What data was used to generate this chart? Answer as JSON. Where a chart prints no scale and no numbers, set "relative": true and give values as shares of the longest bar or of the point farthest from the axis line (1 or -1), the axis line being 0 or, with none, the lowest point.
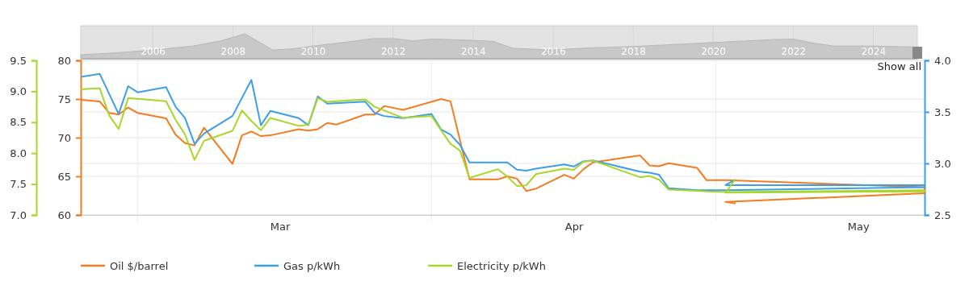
{
  "chart_data": [
    {
      "type": "line",
      "xlim": [
        "--02-23",
        "--05-23"
      ],
      "xticks": [
        {
          "value": "--03-01",
          "label": null
        },
        {
          "value": "--03-16",
          "label": "Mar"
        },
        {
          "value": "--04-01",
          "label": null
        },
        {
          "value": "--04-16",
          "label": "Apr"
        },
        {
          "value": "--05-01",
          "label": null
        },
        {
          "value": "--05-16",
          "label": "May"
        }
      ],
      "ylim": [
        60,
        80
      ],
      "yticks": [
        60,
        65,
        70,
        75,
        80
      ],
      "y2lim": [
        2.5,
        4.0
      ],
      "y2ticks": [
        {
          "value": 2.5,
          "label": "2.5"
        },
        {
          "value": 3,
          "label": "3.0"
        },
        {
          "value": 3.5,
          "label": "3.5"
        },
        {
          "value": 4,
          "label": "4.0"
        }
      ],
      "y3lim": [
        7.0,
        9.5
      ],
      "y3ticks": [
        {
          "value": 7,
          "label": "7.0"
        },
        {
          "value": 7.5,
          "label": "7.5"
        },
        {
          "value": 8,
          "label": "8.0"
        },
        {
          "value": 8.5,
          "label": "8.5"
        },
        {
          "value": 9,
          "label": "9.0"
        },
        {
          "value": 9.5,
          "label": "9.5"
        }
      ],
      "grid": true,
      "legend": "bottom",
      "annotations": [
        "Show all"
      ],
      "series": [
        {
          "name": "Oil $/barrel",
          "color": "#f47b20",
          "x": [
            "--02-23",
            "--02-25",
            "--02-26",
            "--02-27",
            "--02-28",
            "--03-01",
            "--03-04",
            "--03-05",
            "--03-06",
            "--03-07",
            "--03-08",
            "--03-11",
            "--03-12",
            "--03-13",
            "--03-14",
            "--03-15",
            "--03-18",
            "--03-19",
            "--03-20",
            "--03-21",
            "--03-22",
            "--03-25",
            "--03-26",
            "--03-27",
            "--03-29",
            "--04-02",
            "--04-03",
            "--04-05",
            "--04-08",
            "--04-09",
            "--04-10",
            "--04-11",
            "--04-12",
            "--04-15",
            "--04-16",
            "--04-17",
            "--04-18",
            "--04-23",
            "--04-24",
            "--04-25",
            "--04-26",
            "--04-29",
            "--04-30",
            "--05-02",
            "--05-23",
            "--05-23",
            "--05-02",
            "--05-03"
          ],
          "values": [
            74.9,
            74.7,
            73.2,
            73.0,
            73.9,
            73.2,
            72.5,
            70.4,
            69.3,
            69.0,
            71.3,
            66.6,
            70.3,
            70.8,
            70.2,
            70.3,
            71.1,
            70.9,
            71.1,
            71.9,
            71.7,
            73.0,
            73.0,
            74.1,
            73.6,
            75.0,
            74.7,
            64.6,
            64.6,
            65.0,
            64.7,
            63.1,
            63.4,
            65.2,
            64.7,
            65.9,
            66.8,
            67.7,
            66.4,
            66.3,
            66.7,
            66.1,
            64.5,
            64.5,
            63.6,
            62.8,
            61.7,
            61.5
          ]
        },
        {
          "name": "Gas p/kWh",
          "color": "#3d9fe6",
          "axis": "y2",
          "x": [
            "--02-23",
            "--02-25",
            "--02-27",
            "--02-28",
            "--03-01",
            "--03-04",
            "--03-05",
            "--03-06",
            "--03-07",
            "--03-08",
            "--03-11",
            "--03-13",
            "--03-14",
            "--03-15",
            "--03-18",
            "--03-19",
            "--03-20",
            "--03-21",
            "--03-25",
            "--03-26",
            "--03-27",
            "--03-29",
            "--04-01",
            "--04-02",
            "--04-03",
            "--04-04",
            "--04-05",
            "--04-09",
            "--04-10",
            "--04-11",
            "--04-12",
            "--04-15",
            "--04-16",
            "--04-17",
            "--04-18",
            "--04-23",
            "--04-24",
            "--04-25",
            "--04-26",
            "--04-29",
            "--04-30",
            "--05-02",
            "--05-23",
            "--05-23",
            "--05-02",
            "--05-03"
          ],
          "values": [
            3.84,
            3.87,
            3.48,
            3.75,
            3.69,
            3.74,
            3.55,
            3.44,
            3.19,
            3.29,
            3.46,
            3.81,
            3.37,
            3.51,
            3.44,
            3.37,
            3.65,
            3.58,
            3.6,
            3.49,
            3.46,
            3.44,
            3.48,
            3.33,
            3.28,
            3.18,
            3.01,
            3.01,
            2.94,
            2.93,
            2.95,
            2.99,
            2.97,
            3.02,
            3.03,
            2.92,
            2.91,
            2.89,
            2.76,
            2.74,
            2.74,
            2.74,
            2.77,
            2.79,
            2.79,
            2.84
          ]
        },
        {
          "name": "Electricity p/kWh",
          "color": "#a9d62a",
          "axis": "y3",
          "x": [
            "--02-23",
            "--02-25",
            "--02-26",
            "--02-27",
            "--02-28",
            "--03-04",
            "--03-05",
            "--03-06",
            "--03-07",
            "--03-08",
            "--03-11",
            "--03-12",
            "--03-13",
            "--03-14",
            "--03-15",
            "--03-18",
            "--03-19",
            "--03-20",
            "--03-21",
            "--03-25",
            "--03-26",
            "--03-29",
            "--04-01",
            "--04-02",
            "--04-03",
            "--04-04",
            "--04-05",
            "--04-08",
            "--04-09",
            "--04-10",
            "--04-11",
            "--04-12",
            "--04-15",
            "--04-16",
            "--04-17",
            "--04-18",
            "--04-23",
            "--04-24",
            "--04-25",
            "--04-26",
            "--04-29",
            "--04-30",
            "--05-02",
            "--05-23",
            "--05-23",
            "--05-02",
            "--05-03"
          ],
          "values": [
            9.03,
            9.05,
            8.61,
            8.39,
            8.89,
            8.84,
            8.54,
            8.3,
            7.89,
            8.2,
            8.36,
            8.69,
            8.52,
            8.37,
            8.57,
            8.44,
            8.46,
            8.89,
            8.83,
            8.87,
            8.75,
            8.57,
            8.6,
            8.37,
            8.15,
            8.04,
            7.6,
            7.74,
            7.62,
            7.47,
            7.48,
            7.66,
            7.75,
            7.73,
            7.86,
            7.88,
            7.61,
            7.63,
            7.57,
            7.41,
            7.39,
            7.38,
            7.37,
            7.4,
            7.38,
            7.36,
            7.57
          ]
        }
      ]
    },
    {
      "type": "area",
      "relative": true,
      "grid": "x",
      "xlim": [
        2004.2,
        2025.1
      ],
      "xticks": [
        2006,
        2008,
        2010,
        2012,
        2014,
        2016,
        2018,
        2020,
        2022,
        2024
      ],
      "series": [
        {
          "color": "#c8c8c8",
          "x": [
            2004.2,
            2005,
            2006,
            2007,
            2007.7,
            2008.3,
            2008.7,
            2009,
            2009.5,
            2010,
            2011,
            2011.5,
            2012,
            2012.5,
            2013,
            2014,
            2014.5,
            2015,
            2016,
            2016.5,
            2017,
            2018,
            2021.5,
            2022,
            2022.5,
            2023,
            2024,
            2025.1
          ],
          "values": [
            0.16,
            0.23,
            0.35,
            0.51,
            0.72,
            1.0,
            0.63,
            0.35,
            0.4,
            0.51,
            0.7,
            0.81,
            0.81,
            0.72,
            0.79,
            0.74,
            0.7,
            0.42,
            0.35,
            0.4,
            0.44,
            0.49,
            0.77,
            0.79,
            0.63,
            0.51,
            0.51,
            0.47
          ]
        }
      ]
    }
  ]
}
